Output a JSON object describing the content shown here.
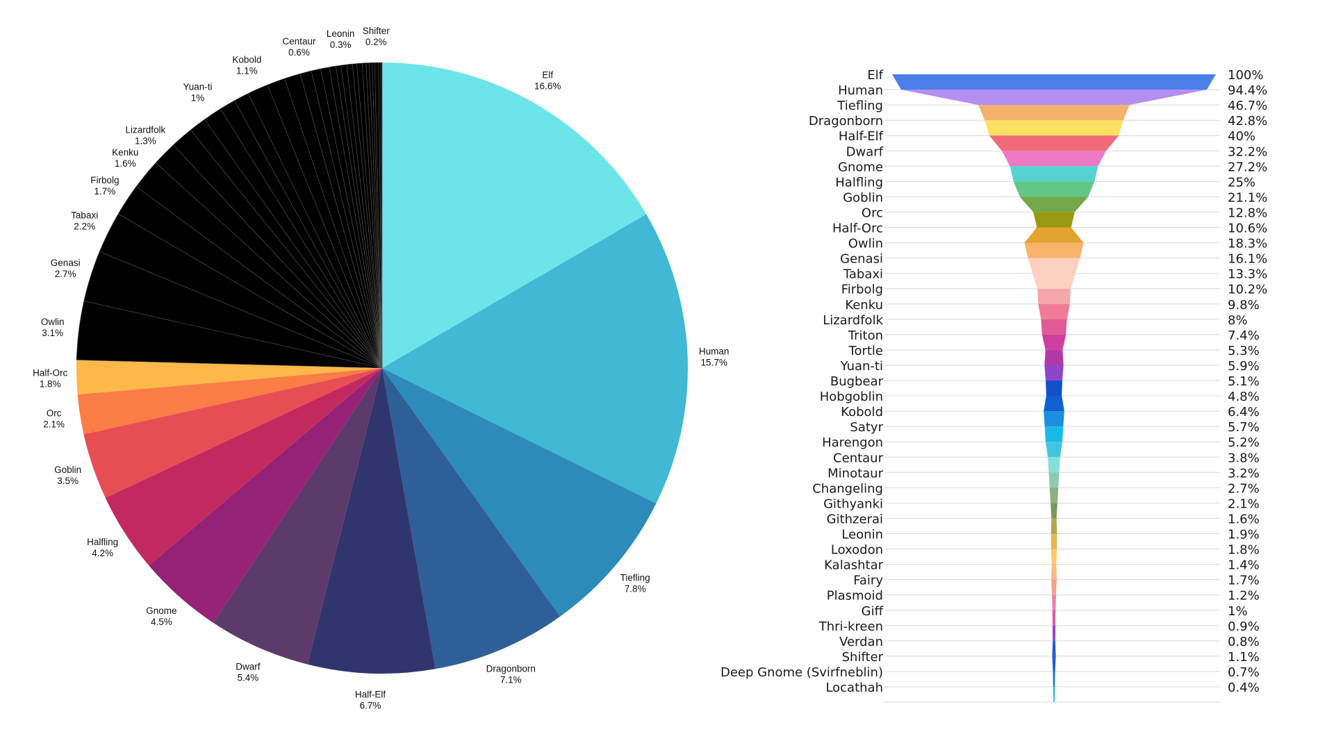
{
  "chart_data": [
    {
      "type": "pie",
      "slices": [
        {
          "label": "Elf",
          "value": 16.6,
          "value_label": "16.6%",
          "color": "#6ce5e8"
        },
        {
          "label": "Human",
          "value": 15.7,
          "value_label": "15.7%",
          "color": "#41b8d5"
        },
        {
          "label": "Tiefling",
          "value": 7.8,
          "value_label": "7.8%",
          "color": "#2d8bba"
        },
        {
          "label": "Dragonborn",
          "value": 7.1,
          "value_label": "7.1%",
          "color": "#2f5f98"
        },
        {
          "label": "Half-Elf",
          "value": 6.7,
          "value_label": "6.7%",
          "color": "#31356e"
        },
        {
          "label": "Dwarf",
          "value": 5.4,
          "value_label": "5.4%",
          "color": "#5c3a6a"
        },
        {
          "label": "Gnome",
          "value": 4.5,
          "value_label": "4.5%",
          "color": "#952277"
        },
        {
          "label": "Halfling",
          "value": 4.2,
          "value_label": "4.2%",
          "color": "#c22a5f"
        },
        {
          "label": "Goblin",
          "value": 3.5,
          "value_label": "3.5%",
          "color": "#e74e54"
        },
        {
          "label": "Orc",
          "value": 2.1,
          "value_label": "2.1%",
          "color": "#fa7c46"
        },
        {
          "label": "Half-Orc",
          "value": 1.8,
          "value_label": "1.8%",
          "color": "#fdb849"
        },
        {
          "label": "Owlin",
          "value": 3.1,
          "value_label": "3.1%",
          "color": "#000000"
        },
        {
          "label": "Genasi",
          "value": 2.7,
          "value_label": "2.7%",
          "color": "#000000"
        },
        {
          "label": "Tabaxi",
          "value": 2.2,
          "value_label": "2.2%",
          "color": "#000000"
        },
        {
          "label": "Firbolg",
          "value": 1.7,
          "value_label": "1.7%",
          "color": "#000000"
        },
        {
          "label": "Kenku",
          "value": 1.6,
          "value_label": "1.6%",
          "color": "#000000"
        },
        {
          "label": "Lizardfolk",
          "value": 1.3,
          "value_label": "1.3%",
          "color": "#000000"
        },
        {
          "label": "Triton",
          "value": 1.2,
          "value_label": "",
          "color": "#000000"
        },
        {
          "label": "Tortle",
          "value": 0.9,
          "value_label": "",
          "color": "#000000"
        },
        {
          "label": "Yuan-ti",
          "value": 1.0,
          "value_label": "1%",
          "color": "#000000"
        },
        {
          "label": "Bugbear",
          "value": 0.85,
          "value_label": "",
          "color": "#000000"
        },
        {
          "label": "Hobgoblin",
          "value": 0.8,
          "value_label": "",
          "color": "#000000"
        },
        {
          "label": "Kobold",
          "value": 1.1,
          "value_label": "1.1%",
          "color": "#000000"
        },
        {
          "label": "Satyr",
          "value": 0.95,
          "value_label": "",
          "color": "#000000"
        },
        {
          "label": "Harengon",
          "value": 0.85,
          "value_label": "",
          "color": "#000000"
        },
        {
          "label": "Centaur",
          "value": 0.6,
          "value_label": "0.6%",
          "color": "#000000"
        },
        {
          "label": "Minotaur",
          "value": 0.5,
          "value_label": "",
          "color": "#000000"
        },
        {
          "label": "Changeling",
          "value": 0.45,
          "value_label": "",
          "color": "#000000"
        },
        {
          "label": "Githyanki",
          "value": 0.35,
          "value_label": "",
          "color": "#000000"
        },
        {
          "label": "Githzerai",
          "value": 0.27,
          "value_label": "",
          "color": "#000000"
        },
        {
          "label": "Leonin",
          "value": 0.3,
          "value_label": "0.3%",
          "color": "#000000"
        },
        {
          "label": "Loxodon",
          "value": 0.3,
          "value_label": "",
          "color": "#000000"
        },
        {
          "label": "Kalashtar",
          "value": 0.23,
          "value_label": "",
          "color": "#000000"
        },
        {
          "label": "Fairy",
          "value": 0.28,
          "value_label": "",
          "color": "#000000"
        },
        {
          "label": "Plasmoid",
          "value": 0.2,
          "value_label": "",
          "color": "#000000"
        },
        {
          "label": "Giff",
          "value": 0.17,
          "value_label": "",
          "color": "#000000"
        },
        {
          "label": "Thri-kreen",
          "value": 0.15,
          "value_label": "",
          "color": "#000000"
        },
        {
          "label": "Verdan",
          "value": 0.13,
          "value_label": "",
          "color": "#000000"
        },
        {
          "label": "Shifter",
          "value": 0.2,
          "value_label": "0.2%",
          "color": "#000000"
        },
        {
          "label": "Deep Gnome (Svirfneblin)",
          "value": 0.12,
          "value_label": "",
          "color": "#000000"
        },
        {
          "label": "Locathah",
          "value": 0.07,
          "value_label": "",
          "color": "#000000"
        }
      ],
      "start_angle": "12 o'clock",
      "direction": "clockwise",
      "slice_separator_color": "#555555"
    },
    {
      "type": "funnel",
      "categories": [
        "Elf",
        "Human",
        "Tiefling",
        "Dragonborn",
        "Half-Elf",
        "Dwarf",
        "Gnome",
        "Halfling",
        "Goblin",
        "Orc",
        "Half-Orc",
        "Owlin",
        "Genasi",
        "Tabaxi",
        "Firbolg",
        "Kenku",
        "Lizardfolk",
        "Triton",
        "Tortle",
        "Yuan-ti",
        "Bugbear",
        "Hobgoblin",
        "Kobold",
        "Satyr",
        "Harengon",
        "Centaur",
        "Minotaur",
        "Changeling",
        "Githyanki",
        "Githzerai",
        "Leonin",
        "Loxodon",
        "Kalashtar",
        "Fairy",
        "Plasmoid",
        "Giff",
        "Thri-kreen",
        "Verdan",
        "Shifter",
        "Deep Gnome (Svirfneblin)",
        "Locathah"
      ],
      "values": [
        100,
        94.4,
        46.7,
        42.8,
        40,
        32.2,
        27.2,
        25,
        21.1,
        12.8,
        10.6,
        18.3,
        16.1,
        13.3,
        10.2,
        9.8,
        8,
        7.4,
        5.3,
        5.9,
        5.1,
        4.8,
        6.4,
        5.7,
        5.2,
        3.8,
        3.2,
        2.7,
        2.1,
        1.6,
        1.9,
        1.8,
        1.4,
        1.7,
        1.2,
        1,
        0.9,
        0.8,
        1.1,
        0.7,
        0.4
      ],
      "value_labels": [
        "100%",
        "94.4%",
        "46.7%",
        "42.8%",
        "40%",
        "32.2%",
        "27.2%",
        "25%",
        "21.1%",
        "12.8%",
        "10.6%",
        "18.3%",
        "16.1%",
        "13.3%",
        "10.2%",
        "9.8%",
        "8%",
        "7.4%",
        "5.3%",
        "5.9%",
        "5.1%",
        "4.8%",
        "6.4%",
        "5.7%",
        "5.2%",
        "3.8%",
        "3.2%",
        "2.7%",
        "2.1%",
        "1.6%",
        "1.9%",
        "1.8%",
        "1.4%",
        "1.7%",
        "1.2%",
        "1%",
        "0.9%",
        "0.8%",
        "1.1%",
        "0.7%",
        "0.4%"
      ],
      "colors": [
        "#4a7fe8",
        "#b48ef0",
        "#f3b26b",
        "#fde060",
        "#f06a78",
        "#ee79c4",
        "#56d3d0",
        "#62c786",
        "#73a74a",
        "#9a9a10",
        "#e3a330",
        "#f8b36c",
        "#fdcfbf",
        "#fdd0c1",
        "#f6a8a8",
        "#f07b95",
        "#e05a94",
        "#cf3d9e",
        "#b23aa8",
        "#8e45c8",
        "#1251cc",
        "#1060d0",
        "#1c8ee0",
        "#19b8ea",
        "#43c6dd",
        "#85e0da",
        "#8fc9b0",
        "#8eae83",
        "#789a5b",
        "#b4a45a",
        "#e7b752",
        "#f8c86a",
        "#fbb985",
        "#f5a08c",
        "#ed7ea1",
        "#d85fa8",
        "#9646c2",
        "#2b5bd2",
        "#1a5fcf",
        "#1979d8",
        "#19b6e2"
      ]
    }
  ]
}
